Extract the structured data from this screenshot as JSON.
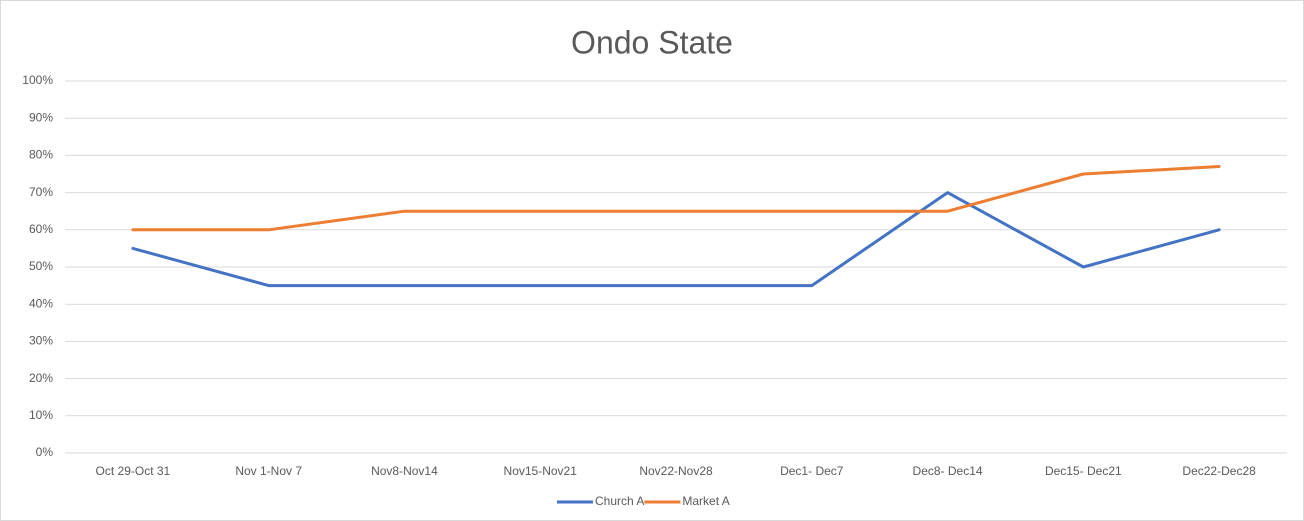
{
  "chart_data": {
    "type": "line",
    "title": "Ondo State",
    "categories": [
      "Oct 29-Oct 31",
      "Nov 1-Nov 7",
      "Nov8-Nov14",
      "Nov15-Nov21",
      "Nov22-Nov28",
      "Dec1- Dec7",
      "Dec8- Dec14",
      "Dec15- Dec21",
      "Dec22-Dec28"
    ],
    "series": [
      {
        "name": "Church A",
        "color": "#4472c4",
        "values": [
          55,
          45,
          45,
          45,
          45,
          45,
          70,
          50,
          60
        ]
      },
      {
        "name": "Market A",
        "color": "#ed7d31",
        "values": [
          60,
          60,
          65,
          65,
          65,
          65,
          65,
          75,
          77
        ]
      }
    ],
    "ylim": [
      0,
      100
    ],
    "yticks": [
      {
        "value": 0,
        "label": "0%"
      },
      {
        "value": 10,
        "label": "10%"
      },
      {
        "value": 20,
        "label": "20%"
      },
      {
        "value": 30,
        "label": "30%"
      },
      {
        "value": 40,
        "label": "40%"
      },
      {
        "value": 50,
        "label": "50%"
      },
      {
        "value": 60,
        "label": "60%"
      },
      {
        "value": 70,
        "label": "70%"
      },
      {
        "value": 80,
        "label": "80%"
      },
      {
        "value": 90,
        "label": "90%"
      },
      {
        "value": 100,
        "label": "100%"
      }
    ],
    "grid": true,
    "legend": "bottom"
  }
}
